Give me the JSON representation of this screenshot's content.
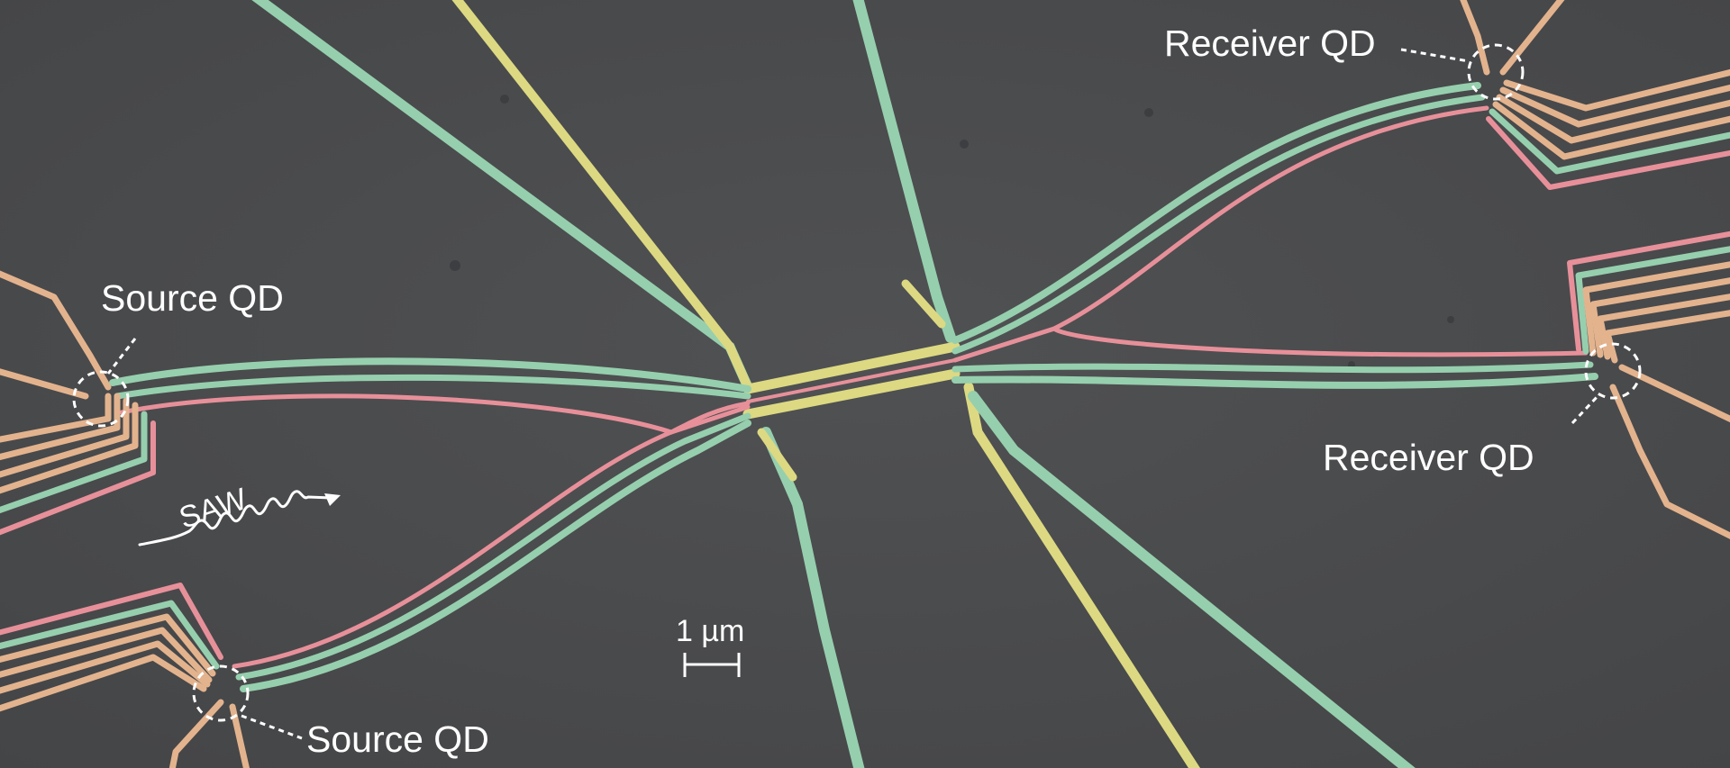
{
  "labels": {
    "receiver_top": "Receiver QD",
    "receiver_right": "Receiver QD",
    "source_left": "Source QD",
    "source_bottom": "Source QD",
    "wave": "SAW",
    "scale_bar": "1 µm"
  },
  "colors": {
    "background": "#4a4b4d",
    "gate_green": "#96cfae",
    "gate_yellow": "#dcd982",
    "gate_pink": "#e7909a",
    "gate_orange": "#e3b38e",
    "annotation": "#ffffff"
  },
  "icons": [
    "dashed-circle-marker",
    "wavy-arrow",
    "scale-bar"
  ]
}
